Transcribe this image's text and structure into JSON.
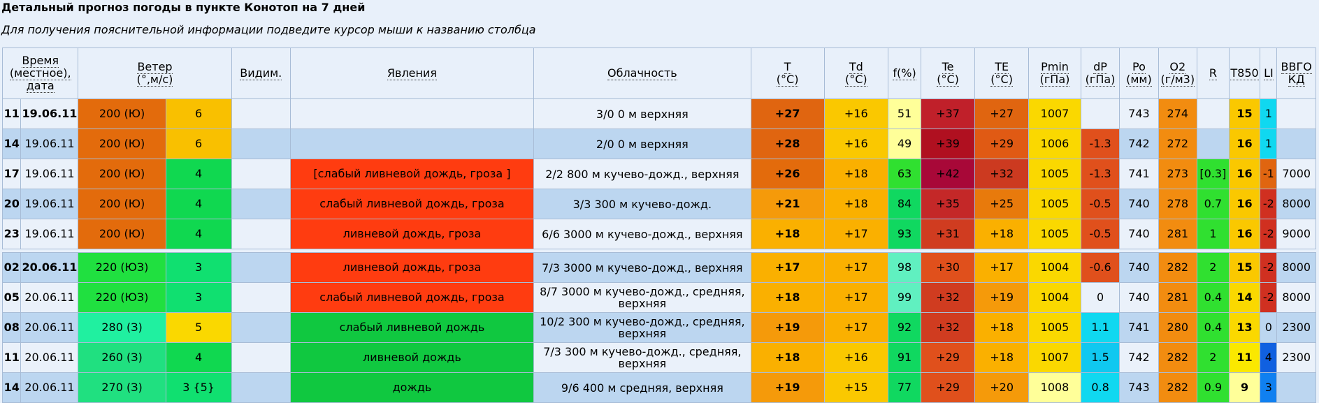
{
  "page": {
    "title": "Детальный прогноз погоды в пункте Конотоп на 7 дней",
    "subtitle": "Для получения пояснительной информации подведите курсор мыши к названию столбца"
  },
  "headers": [
    {
      "key": "time",
      "label": "Время\n(местное),\nдата",
      "colspan": 2
    },
    {
      "key": "wind",
      "label": "Ветер\n(°,м/с)",
      "colspan": 2
    },
    {
      "key": "vis",
      "label": "Видим.",
      "colspan": 1
    },
    {
      "key": "phen",
      "label": "Явления",
      "colspan": 1
    },
    {
      "key": "cloud",
      "label": "Облачность",
      "colspan": 1
    },
    {
      "key": "T",
      "label": "T\n(°C)",
      "colspan": 1
    },
    {
      "key": "Td",
      "label": "Td\n(°C)",
      "colspan": 1
    },
    {
      "key": "f",
      "label": "f(%)",
      "colspan": 1
    },
    {
      "key": "Te",
      "label": "Te\n(°C)",
      "colspan": 1
    },
    {
      "key": "TE",
      "label": "TE\n(°C)",
      "colspan": 1
    },
    {
      "key": "Pmin",
      "label": "Pmin\n(гПа)",
      "colspan": 1
    },
    {
      "key": "dP",
      "label": "dP\n(гПа)",
      "colspan": 1
    },
    {
      "key": "Po",
      "label": "Po\n(мм)",
      "colspan": 1
    },
    {
      "key": "O2",
      "label": "O2\n(г/м3)",
      "colspan": 1
    },
    {
      "key": "R",
      "label": "R",
      "colspan": 1
    },
    {
      "key": "T850",
      "label": "T850",
      "colspan": 1
    },
    {
      "key": "LI",
      "label": "LI",
      "colspan": 1
    },
    {
      "key": "vvgo",
      "label": "ВВГО\nКД",
      "colspan": 1
    }
  ],
  "rows": [
    {
      "hour": "11",
      "date": "19.06.11",
      "date_bold": true,
      "wind_dir": "200 (Ю)",
      "wind_dir_bg": "#e36b0c",
      "wind_speed": "6",
      "wind_speed_bg": "#f9c000",
      "vis": "",
      "vis_bg": "#eaf1fa",
      "phen": "",
      "phen_bg": "#eaf1fa",
      "cloud": "3/0 0 м верхняя",
      "cloud_bg": "#eaf1fa",
      "T": "+27",
      "T_bg": "#e06510",
      "Td": "+16",
      "Td_bg": "#fac800",
      "f": "51",
      "f_bg": "#ffff99",
      "Te": "+37",
      "Te_bg": "#c0202a",
      "TE": "+27",
      "TE_bg": "#e06510",
      "Pmin": "1007",
      "Pmin_bg": "#fad800",
      "dP": "",
      "dP_bg": "#eaf1fa",
      "Po": "743",
      "Po_bg": "#eaf1fa",
      "O2": "274",
      "O2_bg": "#f28c10",
      "R": "",
      "R_bg": "#eaf1fa",
      "T850": "15",
      "T850_bg": "#fac800",
      "LI": "1",
      "LI_bg": "#10d8f0",
      "vvgo": "",
      "vvgo_bg": "#eaf1fa"
    },
    {
      "hour": "14",
      "date": "19.06.11",
      "date_bold": false,
      "wind_dir": "200 (Ю)",
      "wind_dir_bg": "#e36b0c",
      "wind_speed": "6",
      "wind_speed_bg": "#f9c000",
      "vis": "",
      "vis_bg": "#bcd6f0",
      "phen": "",
      "phen_bg": "#bcd6f0",
      "cloud": "2/0 0 м верхняя",
      "cloud_bg": "#bcd6f0",
      "T": "+28",
      "T_bg": "#e06510",
      "Td": "+16",
      "Td_bg": "#fac800",
      "f": "49",
      "f_bg": "#ffff99",
      "Te": "+39",
      "Te_bg": "#b01020",
      "TE": "+29",
      "TE_bg": "#e05a14",
      "Pmin": "1006",
      "Pmin_bg": "#fad800",
      "dP": "-1.3",
      "dP_bg": "#e0501c",
      "Po": "742",
      "Po_bg": "#bcd6f0",
      "O2": "272",
      "O2_bg": "#f28c10",
      "R": "",
      "R_bg": "#bcd6f0",
      "T850": "16",
      "T850_bg": "#fac800",
      "LI": "1",
      "LI_bg": "#10d8f0",
      "vvgo": "",
      "vvgo_bg": "#bcd6f0"
    },
    {
      "hour": "17",
      "date": "19.06.11",
      "date_bold": false,
      "wind_dir": "200 (Ю)",
      "wind_dir_bg": "#e36b0c",
      "wind_speed": "4",
      "wind_speed_bg": "#10d850",
      "vis": "",
      "vis_bg": "#eaf1fa",
      "phen": "[слабый ливневой дождь, гроза ]",
      "phen_bg": "#ff3c10",
      "cloud": "2/2 800 м кучево-дожд., верхняя",
      "cloud_bg": "#eaf1fa",
      "T": "+26",
      "T_bg": "#e36b0c",
      "Td": "+18",
      "Td_bg": "#fab000",
      "f": "63",
      "f_bg": "#30e030",
      "Te": "+42",
      "Te_bg": "#a80838",
      "TE": "+32",
      "TE_bg": "#cc3a20",
      "Pmin": "1005",
      "Pmin_bg": "#fad800",
      "dP": "-1.3",
      "dP_bg": "#e0501c",
      "Po": "741",
      "Po_bg": "#eaf1fa",
      "O2": "273",
      "O2_bg": "#f28c10",
      "R": "[0.3]",
      "R_bg": "#30e030",
      "T850": "16",
      "T850_bg": "#fac800",
      "LI": "-1",
      "LI_bg": "#e06510",
      "vvgo": "7000",
      "vvgo_bg": "#eaf1fa"
    },
    {
      "hour": "20",
      "date": "19.06.11",
      "date_bold": false,
      "wind_dir": "200 (Ю)",
      "wind_dir_bg": "#e36b0c",
      "wind_speed": "4",
      "wind_speed_bg": "#10d850",
      "vis": "",
      "vis_bg": "#bcd6f0",
      "phen": "слабый ливневой дождь, гроза",
      "phen_bg": "#ff3c10",
      "cloud": "3/3 300 м кучево-дожд.",
      "cloud_bg": "#bcd6f0",
      "T": "+21",
      "T_bg": "#f59a0a",
      "Td": "+18",
      "Td_bg": "#fab000",
      "f": "84",
      "f_bg": "#10d860",
      "Te": "+35",
      "Te_bg": "#c42828",
      "TE": "+25",
      "TE_bg": "#e87a0c",
      "Pmin": "1005",
      "Pmin_bg": "#fad800",
      "dP": "-0.5",
      "dP_bg": "#e0501c",
      "Po": "740",
      "Po_bg": "#bcd6f0",
      "O2": "278",
      "O2_bg": "#f28c10",
      "R": "0.7",
      "R_bg": "#30e030",
      "T850": "16",
      "T850_bg": "#fac800",
      "LI": "-2",
      "LI_bg": "#d03020",
      "vvgo": "8000",
      "vvgo_bg": "#bcd6f0"
    },
    {
      "hour": "23",
      "date": "19.06.11",
      "date_bold": false,
      "wind_dir": "200 (Ю)",
      "wind_dir_bg": "#e36b0c",
      "wind_speed": "4",
      "wind_speed_bg": "#10d850",
      "vis": "",
      "vis_bg": "#eaf1fa",
      "phen": "ливневой дождь, гроза",
      "phen_bg": "#ff3c10",
      "cloud": "6/6 3000 м кучево-дожд., верхняя",
      "cloud_bg": "#eaf1fa",
      "T": "+18",
      "T_bg": "#fab000",
      "Td": "+17",
      "Td_bg": "#fab000",
      "f": "93",
      "f_bg": "#10d860",
      "Te": "+31",
      "Te_bg": "#d03c20",
      "TE": "+18",
      "TE_bg": "#fab000",
      "Pmin": "1005",
      "Pmin_bg": "#fad800",
      "dP": "-0.5",
      "dP_bg": "#e0501c",
      "Po": "740",
      "Po_bg": "#eaf1fa",
      "O2": "281",
      "O2_bg": "#f28c10",
      "R": "1",
      "R_bg": "#30e030",
      "T850": "16",
      "T850_bg": "#fac800",
      "LI": "-2",
      "LI_bg": "#d03020",
      "vvgo": "9000",
      "vvgo_bg": "#eaf1fa"
    },
    {
      "separator": true
    },
    {
      "hour": "02",
      "date": "20.06.11",
      "date_bold": true,
      "wind_dir": "220 (ЮЗ)",
      "wind_dir_bg": "#20e040",
      "wind_speed": "3",
      "wind_speed_bg": "#10e070",
      "vis": "",
      "vis_bg": "#bcd6f0",
      "phen": "ливневой дождь, гроза",
      "phen_bg": "#ff3c10",
      "cloud": "7/3 3000 м кучево-дожд., верхняя",
      "cloud_bg": "#bcd6f0",
      "T": "+17",
      "T_bg": "#fab000",
      "Td": "+17",
      "Td_bg": "#fab000",
      "f": "98",
      "f_bg": "#60f0c0",
      "Te": "+30",
      "Te_bg": "#e0501c",
      "TE": "+17",
      "TE_bg": "#fab000",
      "Pmin": "1004",
      "Pmin_bg": "#fad800",
      "dP": "-0.6",
      "dP_bg": "#e0501c",
      "Po": "740",
      "Po_bg": "#bcd6f0",
      "O2": "282",
      "O2_bg": "#f28c10",
      "R": "2",
      "R_bg": "#30e030",
      "T850": "15",
      "T850_bg": "#fac800",
      "LI": "-2",
      "LI_bg": "#d03020",
      "vvgo": "8000",
      "vvgo_bg": "#bcd6f0"
    },
    {
      "hour": "05",
      "date": "20.06.11",
      "date_bold": false,
      "wind_dir": "220 (ЮЗ)",
      "wind_dir_bg": "#20e040",
      "wind_speed": "3",
      "wind_speed_bg": "#10e070",
      "vis": "",
      "vis_bg": "#eaf1fa",
      "phen": "слабый ливневой дождь, гроза",
      "phen_bg": "#ff3c10",
      "cloud": "8/7 3000 м кучево-дожд., средняя, верхняя",
      "cloud_bg": "#eaf1fa",
      "T": "+18",
      "T_bg": "#fab000",
      "Td": "+17",
      "Td_bg": "#fab000",
      "f": "99",
      "f_bg": "#60f0c0",
      "Te": "+32",
      "Te_bg": "#d03c20",
      "TE": "+19",
      "TE_bg": "#f59a0a",
      "Pmin": "1004",
      "Pmin_bg": "#fad800",
      "dP": "0",
      "dP_bg": "#eaf1fa",
      "Po": "740",
      "Po_bg": "#eaf1fa",
      "O2": "281",
      "O2_bg": "#f28c10",
      "R": "0.4",
      "R_bg": "#30e030",
      "T850": "14",
      "T850_bg": "#fad800",
      "LI": "-2",
      "LI_bg": "#d03020",
      "vvgo": "8000",
      "vvgo_bg": "#eaf1fa"
    },
    {
      "hour": "08",
      "date": "20.06.11",
      "date_bold": false,
      "wind_dir": "280 (З)",
      "wind_dir_bg": "#20f0a0",
      "wind_speed": "5",
      "wind_speed_bg": "#fad800",
      "vis": "",
      "vis_bg": "#bcd6f0",
      "phen": "слабый ливневой дождь",
      "phen_bg": "#10c840",
      "cloud": "10/2 300 м кучево-дожд., средняя, верхняя",
      "cloud_bg": "#bcd6f0",
      "T": "+19",
      "T_bg": "#f59a0a",
      "Td": "+17",
      "Td_bg": "#fab000",
      "f": "92",
      "f_bg": "#10d860",
      "Te": "+32",
      "Te_bg": "#d03c20",
      "TE": "+18",
      "TE_bg": "#fab000",
      "Pmin": "1005",
      "Pmin_bg": "#fad800",
      "dP": "1.1",
      "dP_bg": "#10d8f0",
      "Po": "741",
      "Po_bg": "#bcd6f0",
      "O2": "280",
      "O2_bg": "#f28c10",
      "R": "0.4",
      "R_bg": "#30e030",
      "T850": "13",
      "T850_bg": "#fad800",
      "LI": "0",
      "LI_bg": "#bcd6f0",
      "vvgo": "2300",
      "vvgo_bg": "#bcd6f0"
    },
    {
      "hour": "11",
      "date": "20.06.11",
      "date_bold": false,
      "wind_dir": "260 (З)",
      "wind_dir_bg": "#20e080",
      "wind_speed": "4",
      "wind_speed_bg": "#10d850",
      "vis": "",
      "vis_bg": "#eaf1fa",
      "phen": "ливневой дождь",
      "phen_bg": "#10c840",
      "cloud": "7/3 300 м кучево-дожд., средняя, верхняя",
      "cloud_bg": "#eaf1fa",
      "T": "+18",
      "T_bg": "#fab000",
      "Td": "+16",
      "Td_bg": "#fac800",
      "f": "91",
      "f_bg": "#10d860",
      "Te": "+29",
      "Te_bg": "#e0501c",
      "TE": "+18",
      "TE_bg": "#fab000",
      "Pmin": "1007",
      "Pmin_bg": "#fad800",
      "dP": "1.5",
      "dP_bg": "#10c8f0",
      "Po": "742",
      "Po_bg": "#eaf1fa",
      "O2": "282",
      "O2_bg": "#f28c10",
      "R": "2",
      "R_bg": "#30e030",
      "T850": "11",
      "T850_bg": "#fae800",
      "LI": "4",
      "LI_bg": "#1060e0",
      "vvgo": "2300",
      "vvgo_bg": "#eaf1fa"
    },
    {
      "hour": "14",
      "date": "20.06.11",
      "date_bold": false,
      "wind_dir": "270 (З)",
      "wind_dir_bg": "#20e080",
      "wind_speed": "3 {5}",
      "wind_speed_bg": "#10e070",
      "vis": "",
      "vis_bg": "#bcd6f0",
      "phen": "дождь",
      "phen_bg": "#10c840",
      "cloud": "9/6 400 м средняя, верхняя",
      "cloud_bg": "#bcd6f0",
      "T": "+19",
      "T_bg": "#f59a0a",
      "Td": "+15",
      "Td_bg": "#fac800",
      "f": "77",
      "f_bg": "#10d860",
      "Te": "+29",
      "Te_bg": "#e0501c",
      "TE": "+20",
      "TE_bg": "#f59a0a",
      "Pmin": "1008",
      "Pmin_bg": "#ffff99",
      "dP": "0.8",
      "dP_bg": "#10d8f0",
      "Po": "743",
      "Po_bg": "#bcd6f0",
      "O2": "282",
      "O2_bg": "#f28c10",
      "R": "0.9",
      "R_bg": "#30e030",
      "T850": "9",
      "T850_bg": "#ffff99",
      "LI": "3",
      "LI_bg": "#1080f0",
      "vvgo": "",
      "vvgo_bg": "#bcd6f0"
    }
  ]
}
